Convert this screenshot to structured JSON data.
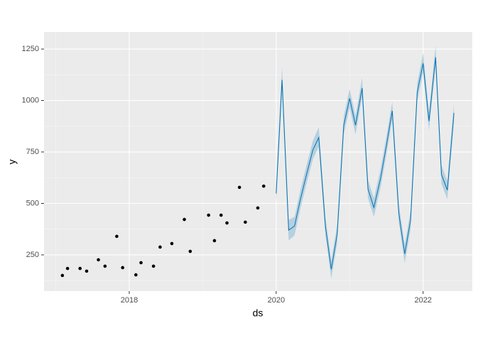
{
  "chart_data": {
    "type": "line",
    "x_label": "ds",
    "y_label": "y",
    "xlim": [
      2016.84,
      2022.67
    ],
    "ylim": [
      74,
      1333
    ],
    "xticks": [
      2018,
      2020,
      2022
    ],
    "yticks": [
      250,
      500,
      750,
      1000,
      1250
    ],
    "grid": true,
    "series": [
      {
        "type": "scatter",
        "color": "#000000",
        "x": [
          2017.09,
          2017.16,
          2017.33,
          2017.42,
          2017.58,
          2017.67,
          2017.83,
          2017.91,
          2018.09,
          2018.16,
          2018.33,
          2018.42,
          2018.58,
          2018.75,
          2018.83,
          2019.08,
          2019.16,
          2019.25,
          2019.33,
          2019.5,
          2019.58,
          2019.75,
          2019.83
        ],
        "values": [
          150,
          184,
          184,
          171,
          226,
          195,
          340,
          188,
          153,
          212,
          195,
          288,
          305,
          422,
          267,
          443,
          319,
          443,
          405,
          578,
          409,
          478,
          584
        ]
      },
      {
        "type": "line",
        "color": "#0072b2",
        "band_color": "#a9c9dc",
        "x": [
          2020.0,
          2020.08,
          2020.17,
          2020.25,
          2020.33,
          2020.42,
          2020.5,
          2020.58,
          2020.67,
          2020.75,
          2020.83,
          2020.92,
          2021.0,
          2021.08,
          2021.17,
          2021.25,
          2021.33,
          2021.42,
          2021.5,
          2021.58,
          2021.67,
          2021.75,
          2021.83,
          2021.92,
          2022.0,
          2022.08,
          2022.17,
          2022.25,
          2022.33,
          2022.42
        ],
        "values": [
          548,
          1100,
          370,
          390,
          520,
          650,
          760,
          820,
          390,
          180,
          350,
          880,
          1010,
          880,
          1060,
          570,
          480,
          620,
          780,
          950,
          450,
          255,
          420,
          1040,
          1180,
          900,
          1210,
          640,
          565,
          940
        ],
        "lower": [
          500,
          1050,
          320,
          345,
          475,
          605,
          715,
          775,
          345,
          135,
          305,
          835,
          965,
          835,
          1015,
          525,
          435,
          575,
          735,
          905,
          405,
          210,
          375,
          995,
          1135,
          855,
          1165,
          595,
          520,
          895
        ],
        "upper": [
          595,
          1160,
          420,
          435,
          565,
          695,
          805,
          870,
          435,
          225,
          395,
          925,
          1055,
          925,
          1110,
          615,
          525,
          665,
          825,
          995,
          495,
          300,
          465,
          1085,
          1230,
          945,
          1265,
          685,
          610,
          985
        ]
      }
    ]
  }
}
